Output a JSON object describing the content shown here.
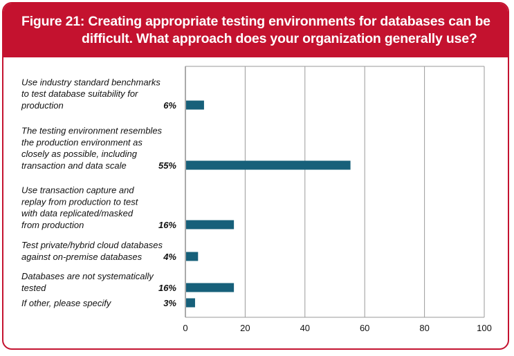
{
  "figure": {
    "title_line1": "Figure 21: Creating appropriate testing environments for databases can be",
    "title_line2": "difficult. What approach does your organization generally use?"
  },
  "colors": {
    "accent": "#c4122f",
    "bar": "#17607a",
    "grid": "#9a9a9a"
  },
  "chart_data": {
    "type": "bar",
    "orientation": "horizontal",
    "categories": [
      [
        "Use industry standard benchmarks",
        "to test database suitability for",
        "production"
      ],
      [
        "The testing environment resembles",
        "the production environment as",
        "closely as possible, including",
        "transaction and data scale"
      ],
      [
        "Use transaction capture and",
        "replay from production to test",
        "with data replicated/masked",
        "from production"
      ],
      [
        "Test private/hybrid cloud databases",
        "against on-premise databases"
      ],
      [
        "Databases are not systematically",
        "tested"
      ],
      [
        "If other, please specify"
      ]
    ],
    "values": [
      6,
      55,
      16,
      4,
      16,
      3
    ],
    "value_labels": [
      "6%",
      "55%",
      "16%",
      "4%",
      "16%",
      "3%"
    ],
    "xlim": [
      0,
      100
    ],
    "xticks": [
      0,
      20,
      40,
      60,
      80,
      100
    ],
    "grid": true
  }
}
